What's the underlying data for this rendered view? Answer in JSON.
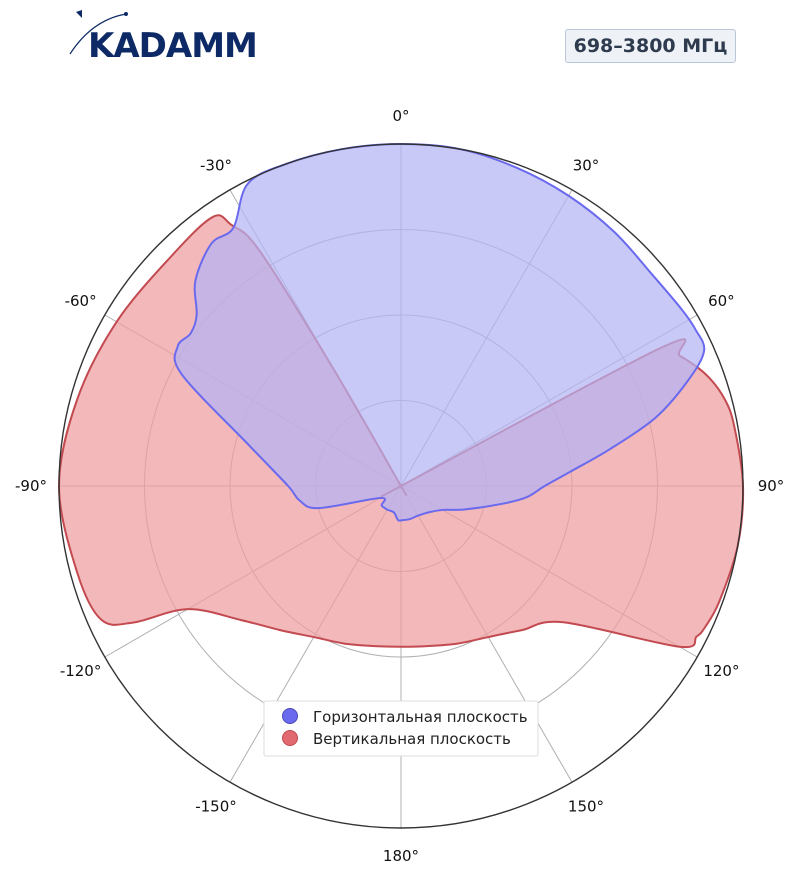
{
  "header": {
    "brand": "KADAMM",
    "band": "698–3800 МГц"
  },
  "chart_data": {
    "type": "polar-area",
    "theta_direction": "clockwise",
    "theta_zero": "top",
    "r_range": [
      0,
      1
    ],
    "r_grid": [
      0.25,
      0.5,
      0.75,
      1.0
    ],
    "angle_ticks": [
      {
        "deg": 0,
        "label": "0°"
      },
      {
        "deg": 30,
        "label": "30°"
      },
      {
        "deg": 60,
        "label": "60°"
      },
      {
        "deg": 90,
        "label": "90°"
      },
      {
        "deg": 120,
        "label": "120°"
      },
      {
        "deg": 150,
        "label": "150°"
      },
      {
        "deg": 180,
        "label": "180°"
      },
      {
        "deg": -150,
        "label": "-150°"
      },
      {
        "deg": -120,
        "label": "-120°"
      },
      {
        "deg": -90,
        "label": "-90°"
      },
      {
        "deg": -60,
        "label": "-60°"
      },
      {
        "deg": -30,
        "label": "-30°"
      }
    ],
    "grid": true,
    "legend_position": "bottom-center",
    "series": [
      {
        "name": "Горизонтальная плоскость",
        "color": "#6a6aee",
        "fill": "#b4b4f4",
        "points": [
          [
            0,
            1.0
          ],
          [
            10,
            1.0
          ],
          [
            20,
            0.99
          ],
          [
            30,
            0.98
          ],
          [
            40,
            0.97
          ],
          [
            50,
            0.96
          ],
          [
            58,
            0.97
          ],
          [
            62,
            0.975
          ],
          [
            66,
            0.97
          ],
          [
            70,
            0.89
          ],
          [
            75,
            0.77
          ],
          [
            80,
            0.62
          ],
          [
            85,
            0.5
          ],
          [
            90,
            0.42
          ],
          [
            95,
            0.37
          ],
          [
            100,
            0.3
          ],
          [
            110,
            0.2
          ],
          [
            120,
            0.14
          ],
          [
            135,
            0.11
          ],
          [
            150,
            0.1
          ],
          [
            165,
            0.1
          ],
          [
            178,
            0.1
          ],
          [
            185,
            0.1
          ],
          [
            195,
            0.08
          ],
          [
            210,
            0.08
          ],
          [
            225,
            0.08
          ],
          [
            240,
            0.07
          ],
          [
            255,
            0.25
          ],
          [
            262,
            0.3
          ],
          [
            270,
            0.33
          ],
          [
            285,
            0.46
          ],
          [
            297,
            0.72
          ],
          [
            302,
            0.77
          ],
          [
            306,
            0.76
          ],
          [
            310,
            0.78
          ],
          [
            315,
            0.85
          ],
          [
            322,
            0.9
          ],
          [
            327,
            0.9
          ],
          [
            333,
            0.99
          ],
          [
            340,
            1.0
          ],
          [
            350,
            1.0
          ],
          [
            360,
            1.0
          ]
        ]
      },
      {
        "name": "Вертикальная плоскость",
        "color": "#c24a50",
        "fill": "#ee9ca0",
        "points": [
          [
            0,
            0.0
          ],
          [
            60,
            0.0
          ],
          [
            62,
            0.86
          ],
          [
            65,
            0.9
          ],
          [
            70,
            0.95
          ],
          [
            75,
            0.98
          ],
          [
            80,
            0.99
          ],
          [
            90,
            1.0
          ],
          [
            100,
            1.0
          ],
          [
            110,
            0.99
          ],
          [
            115,
            0.98
          ],
          [
            117,
            0.97
          ],
          [
            120,
            0.94
          ],
          [
            130,
            0.62
          ],
          [
            140,
            0.55
          ],
          [
            150,
            0.51
          ],
          [
            160,
            0.49
          ],
          [
            170,
            0.475
          ],
          [
            180,
            0.47
          ],
          [
            190,
            0.475
          ],
          [
            200,
            0.49
          ],
          [
            210,
            0.51
          ],
          [
            220,
            0.55
          ],
          [
            230,
            0.61
          ],
          [
            240,
            0.72
          ],
          [
            243,
            0.88
          ],
          [
            246,
            0.96
          ],
          [
            255,
            0.98
          ],
          [
            270,
            1.0
          ],
          [
            285,
            0.98
          ],
          [
            300,
            0.96
          ],
          [
            315,
            0.95
          ],
          [
            325,
            0.96
          ],
          [
            327,
            0.91
          ],
          [
            329,
            0.8
          ],
          [
            330,
            0.4
          ],
          [
            331,
            0.0
          ],
          [
            360,
            0.0
          ]
        ]
      }
    ]
  }
}
